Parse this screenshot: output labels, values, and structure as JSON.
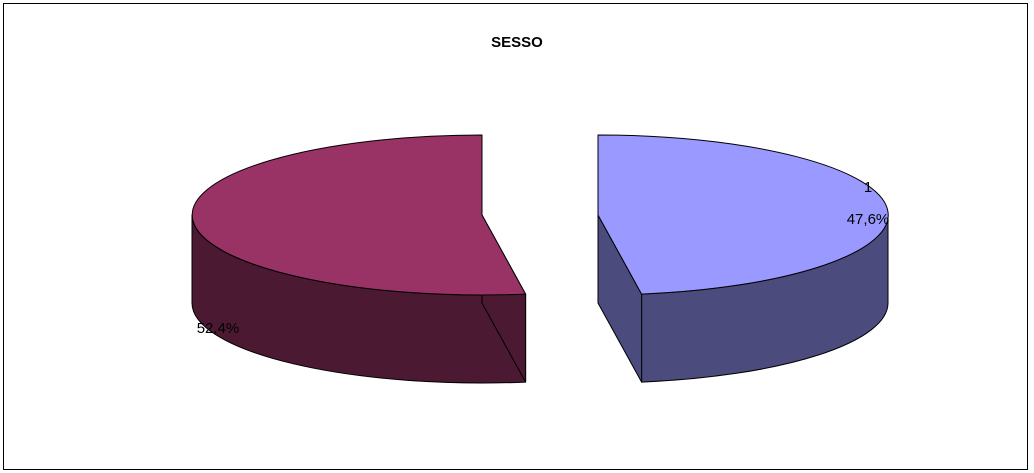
{
  "chart_data": {
    "type": "pie",
    "title": "SESSO",
    "slices": [
      {
        "label": "1",
        "value": 47.6,
        "value_label": "47,6%",
        "color": "#9999FF",
        "side_color": "#4B4B7E"
      },
      {
        "label": "",
        "value": 52.4,
        "value_label": "52,4%",
        "color": "#993366",
        "side_color": "#4C1933"
      }
    ],
    "three_d": true,
    "exploded": true,
    "legend": "none"
  }
}
